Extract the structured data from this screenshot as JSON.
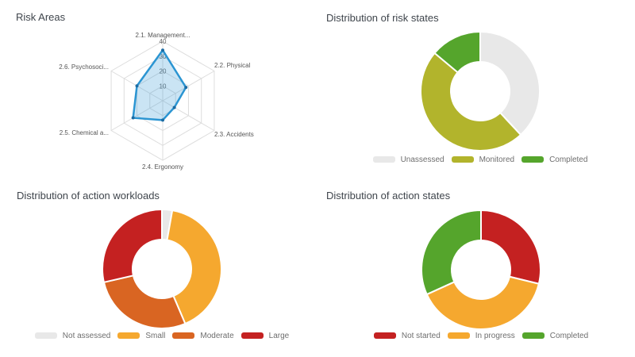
{
  "chart_data": [
    {
      "id": "risk_areas",
      "type": "radar",
      "title": "Risk Areas",
      "categories": [
        "2.1. Management...",
        "2.2. Physical",
        "2.3. Accidents",
        "2.4. Ergonomy",
        "2.5. Chemical a...",
        "2.6. Psychosoci..."
      ],
      "values": [
        34,
        18,
        9,
        13,
        23,
        20
      ],
      "axis_max": 40,
      "tick_interval": 10,
      "tick_labels": [
        "10",
        "20",
        "30",
        "40"
      ],
      "line_color": "#2b95d2",
      "fill_color": "rgba(43,149,210,0.25)",
      "marker_color": "#1b6ba3",
      "grid_color": "#dddddd",
      "grid": "hexagonal",
      "legend_position": "none"
    },
    {
      "id": "risk_states",
      "type": "donut",
      "title": "Distribution of risk states",
      "legend_position": "bottom",
      "segments": [
        {
          "label": "Unassessed",
          "percent": 38.1,
          "color": "#e8e8e8"
        },
        {
          "label": "Monitored",
          "percent": 48.0,
          "color": "#b2b42c"
        },
        {
          "label": "Completed",
          "percent": 13.9,
          "color": "#55a52c"
        }
      ]
    },
    {
      "id": "action_workloads",
      "type": "donut",
      "title": "Distribution of action workloads",
      "legend_position": "bottom",
      "segments": [
        {
          "label": "Not assessed",
          "percent": 2.8,
          "color": "#e8e8e8"
        },
        {
          "label": "Small",
          "percent": 40.8,
          "color": "#f5a82f"
        },
        {
          "label": "Moderate",
          "percent": 27.8,
          "color": "#d96522"
        },
        {
          "label": "Large",
          "percent": 28.6,
          "color": "#c42121"
        }
      ]
    },
    {
      "id": "action_states",
      "type": "donut",
      "title": "Distribution of action states",
      "legend_position": "bottom",
      "segments": [
        {
          "label": "Not started",
          "percent": 28.8,
          "color": "#c42121"
        },
        {
          "label": "In progress",
          "percent": 39.4,
          "color": "#f5a82f"
        },
        {
          "label": "Completed",
          "percent": 31.8,
          "color": "#55a52c"
        }
      ]
    }
  ]
}
